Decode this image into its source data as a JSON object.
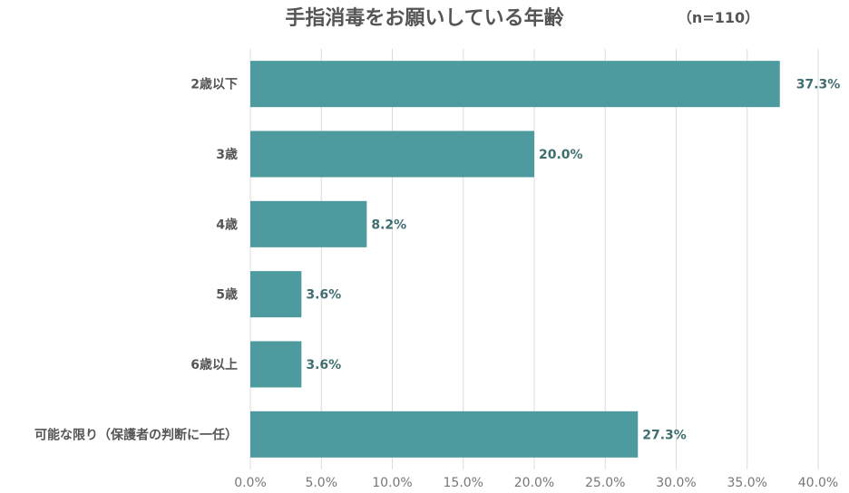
{
  "chart_data": {
    "type": "bar",
    "orientation": "horizontal",
    "title": "手指消毒をお願いしている年齢",
    "note": "（n=110）",
    "categories": [
      "2歳以下",
      "3歳",
      "4歳",
      "5歳",
      "6歳以上",
      "可能な限り（保護者の判断に一任）"
    ],
    "values": [
      37.3,
      20.0,
      8.2,
      3.6,
      3.6,
      27.3
    ],
    "data_labels": [
      "37.3%",
      "20.0%",
      "8.2%",
      "3.6%",
      "3.6%",
      "27.3%"
    ],
    "xlim": [
      0,
      40
    ],
    "x_ticks": [
      0,
      5,
      10,
      15,
      20,
      25,
      30,
      35,
      40
    ],
    "x_tick_labels": [
      "0.0%",
      "5.0%",
      "10.0%",
      "15.0%",
      "20.0%",
      "25.0%",
      "30.0%",
      "35.0%",
      "40.0%"
    ],
    "grid": true,
    "legend": "none",
    "colors": {
      "bar": "#4e9b9f",
      "label": "#3f6e70",
      "grid": "#dcdcdc",
      "text": "#555555"
    }
  }
}
